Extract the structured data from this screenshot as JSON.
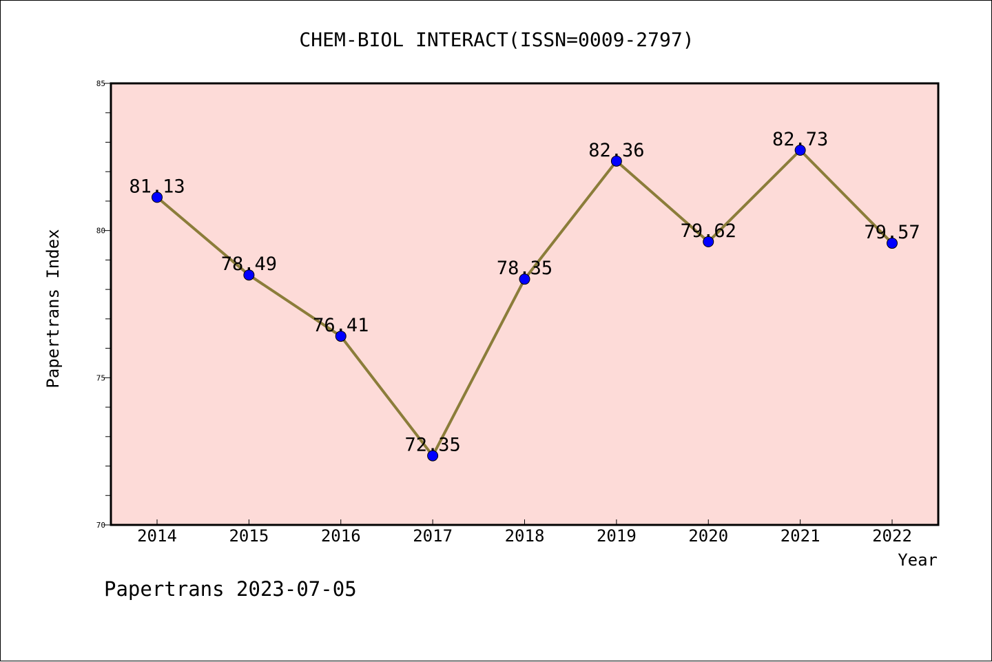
{
  "chart_data": {
    "type": "line",
    "title": "CHEM-BIOL INTERACT(ISSN=0009-2797)",
    "xlabel": "Year",
    "ylabel": "Papertrans Index",
    "footer": "Papertrans 2023-07-05",
    "categories": [
      "2014",
      "2015",
      "2016",
      "2017",
      "2018",
      "2019",
      "2020",
      "2021",
      "2022"
    ],
    "values": [
      81.13,
      78.49,
      76.41,
      72.35,
      78.35,
      82.36,
      79.62,
      82.73,
      79.57
    ],
    "data_labels": [
      "81.13",
      "78.49",
      "76.41",
      "72.35",
      "78.35",
      "82.36",
      "79.62",
      "82.73",
      "79.57"
    ],
    "y_ticks": [
      "70",
      "75",
      "80",
      "85"
    ],
    "ylim": [
      70,
      85
    ],
    "grid": false,
    "colors": {
      "plot_background": "#fddbd8",
      "line": "#8b7d3a",
      "marker": "#0000ff",
      "axis": "#000000"
    }
  }
}
